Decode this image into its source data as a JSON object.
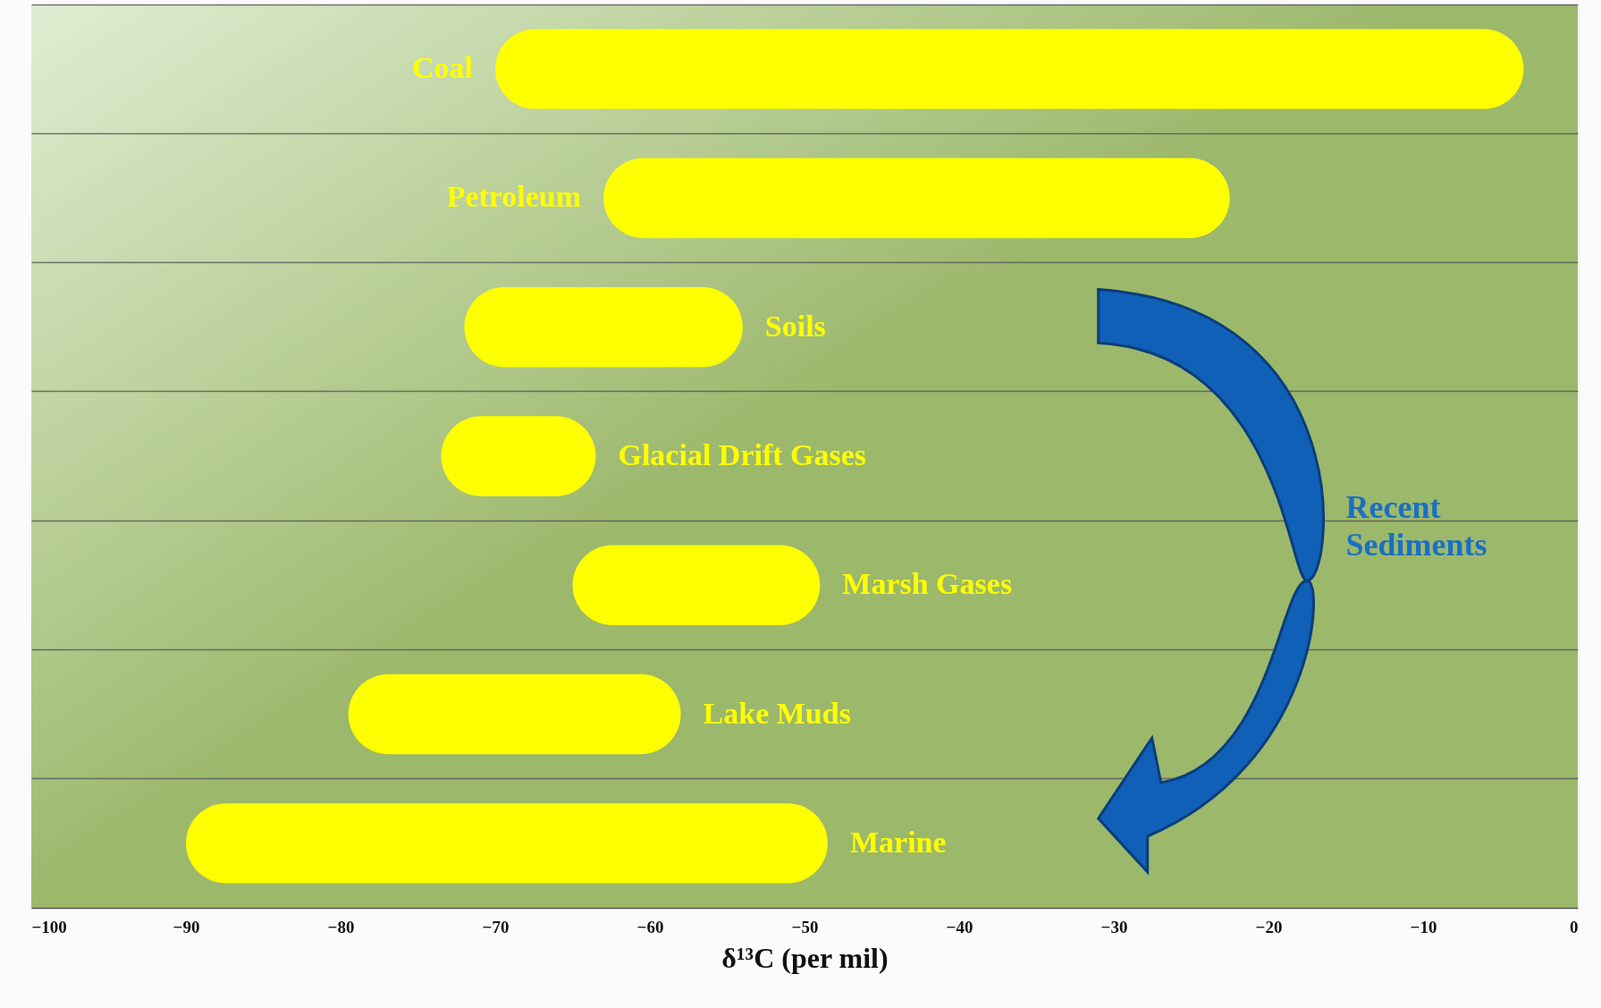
{
  "chart_data": {
    "type": "bar",
    "orientation": "horizontal",
    "xlabel": "δ¹³C (per mil)",
    "categories": [
      "Coal",
      "Petroleum",
      "Soils",
      "Glacial Drift Gases",
      "Marsh Gases",
      "Lake Muds",
      "Marine"
    ],
    "base": [
      -70,
      -63,
      -72,
      -73.5,
      -65,
      -79.5,
      -90
    ],
    "values": [
      66.5,
      40.5,
      18,
      10,
      16,
      21.5,
      41.5
    ],
    "color": "#ffff00",
    "xlim": [
      -100,
      0
    ],
    "xticks": [
      -100,
      -90,
      -80,
      -70,
      -60,
      -50,
      -40,
      -30,
      -20,
      -10,
      0
    ],
    "grid": "y",
    "tick_labels": "x",
    "annotations": [
      "Recent Sediments"
    ]
  }
}
